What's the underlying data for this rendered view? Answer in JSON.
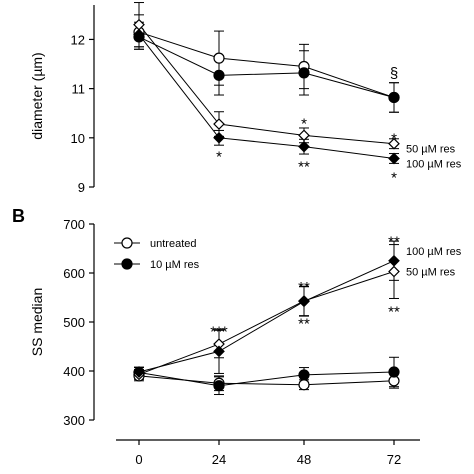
{
  "chart_data": [
    {
      "panel": "",
      "type": "line",
      "ylabel": "diameter (µm)",
      "xlabel": "",
      "x": [
        0,
        24,
        48,
        72
      ],
      "ylim": [
        9,
        12.7
      ],
      "yticks": [
        "9",
        "10",
        "11",
        "12"
      ],
      "series": [
        {
          "name": "",
          "marker": "circle-open",
          "y": [
            12.15,
            11.62,
            11.45,
            10.82
          ],
          "err": [
            0.35,
            0.55,
            0.45,
            0.3
          ]
        },
        {
          "name": "",
          "marker": "circle-filled",
          "y": [
            12.05,
            11.27,
            11.32,
            10.82
          ],
          "err": [
            0.25,
            0.4,
            0.45,
            0.3
          ]
        },
        {
          "name": "50 µM res",
          "marker": "diamond-open",
          "y": [
            12.3,
            10.28,
            10.05,
            9.88
          ],
          "err": [
            0.45,
            0.25,
            0.15,
            0.1
          ]
        },
        {
          "name": "100 µM res",
          "marker": "diamond-filled",
          "y": [
            12.1,
            10.0,
            9.82,
            9.58
          ],
          "err": [
            0.25,
            0.15,
            0.15,
            0.1
          ]
        }
      ],
      "annotations": [
        {
          "text": "§",
          "x": 72,
          "y": 11.38
        },
        {
          "text": "*",
          "x": 48,
          "y": 10.35
        },
        {
          "text": "*",
          "x": 72,
          "y": 10.05
        },
        {
          "text": "*",
          "x": 24,
          "y": 9.68
        },
        {
          "text": "**",
          "x": 48,
          "y": 9.48
        },
        {
          "text": "*",
          "x": 72,
          "y": 9.25
        }
      ]
    },
    {
      "panel": "B",
      "type": "line",
      "ylabel": "SS median",
      "xlabel": "",
      "x": [
        0,
        24,
        48,
        72
      ],
      "xticks": [
        "0",
        "24",
        "48",
        "72"
      ],
      "ylim": [
        300,
        700
      ],
      "yticks": [
        "300",
        "400",
        "500",
        "600",
        "700"
      ],
      "legend": {
        "position": "top-left",
        "entries": [
          "untreated",
          "10 µM res"
        ]
      },
      "series": [
        {
          "name": "untreated",
          "marker": "circle-open",
          "y": [
            390,
            375,
            372,
            380
          ],
          "err": [
            10,
            15,
            10,
            15
          ]
        },
        {
          "name": "10 µM res",
          "marker": "circle-filled",
          "y": [
            397,
            370,
            392,
            398
          ],
          "err": [
            10,
            18,
            15,
            30
          ]
        },
        {
          "name": "50 µM res",
          "marker": "diamond-open",
          "y": [
            393,
            455,
            543,
            603
          ],
          "err": [
            10,
            28,
            30,
            55
          ]
        },
        {
          "name": "100 µM res",
          "marker": "diamond-filled",
          "y": [
            398,
            440,
            542,
            625
          ],
          "err": [
            10,
            45,
            30,
            40
          ]
        }
      ],
      "annotations": [
        {
          "text": "***",
          "x": 24,
          "y": 487
        },
        {
          "text": "**",
          "x": 48,
          "y": 578
        },
        {
          "text": "**",
          "x": 48,
          "y": 503
        },
        {
          "text": "**",
          "x": 72,
          "y": 670
        },
        {
          "text": "**",
          "x": 72,
          "y": 528
        }
      ]
    }
  ]
}
